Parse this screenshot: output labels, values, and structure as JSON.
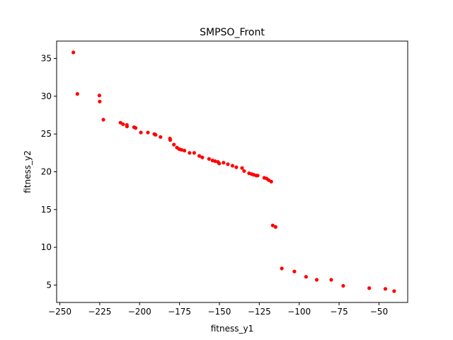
{
  "chart_data": {
    "type": "scatter",
    "title": "SMPSO_Front",
    "xlabel": "fitness_y1",
    "ylabel": "fitness_y2",
    "xlim": [
      -252,
      -32
    ],
    "ylim": [
      2.7,
      37.3
    ],
    "xticks": [
      -250,
      -225,
      -200,
      -175,
      -150,
      -125,
      -100,
      -75,
      -50
    ],
    "yticks": [
      5,
      10,
      15,
      20,
      25,
      30,
      35
    ],
    "grid": false,
    "marker_color": "#ff0000",
    "series": [
      {
        "x": [
          -241.5,
          -239,
          -225.2,
          -225,
          -222.7,
          -212,
          -210.4,
          -208,
          -207.9,
          -203.5,
          -202.5,
          -199.2,
          -194.8,
          -190.8,
          -190,
          -186.9,
          -181,
          -180.8,
          -178.5,
          -176.6,
          -175.2,
          -173.7,
          -171.9,
          -168.7,
          -165.8,
          -162.6,
          -160.7,
          -156.5,
          -154.3,
          -152.7,
          -150.9,
          -150.1,
          -147.4,
          -144.7,
          -141.8,
          -139.4,
          -135.8,
          -134.5,
          -131.4,
          -129.9,
          -128.5,
          -126.9,
          -126,
          -121.9,
          -120.4,
          -119.1,
          -117.5,
          -116.6,
          -114.8,
          -110.9,
          -103,
          -95.7,
          -89,
          -79.9,
          -72.4,
          -56.1,
          -46,
          -40.5
        ],
        "y": [
          35.8,
          30.3,
          30.1,
          29.3,
          26.9,
          26.5,
          26.3,
          26.2,
          26,
          25.9,
          25.8,
          25.2,
          25.2,
          25,
          24.9,
          24.6,
          24.4,
          24.2,
          23.6,
          23.2,
          23,
          22.9,
          22.8,
          22.5,
          22.5,
          22.1,
          21.9,
          21.7,
          21.5,
          21.4,
          21.3,
          21.1,
          21.2,
          21,
          20.8,
          20.6,
          20.5,
          20.1,
          19.8,
          19.7,
          19.6,
          19.5,
          19.5,
          19.2,
          19.1,
          18.9,
          18.7,
          12.9,
          12.7,
          7.2,
          6.8,
          6.1,
          5.7,
          5.7,
          4.9,
          4.6,
          4.5,
          4.2
        ]
      }
    ]
  }
}
